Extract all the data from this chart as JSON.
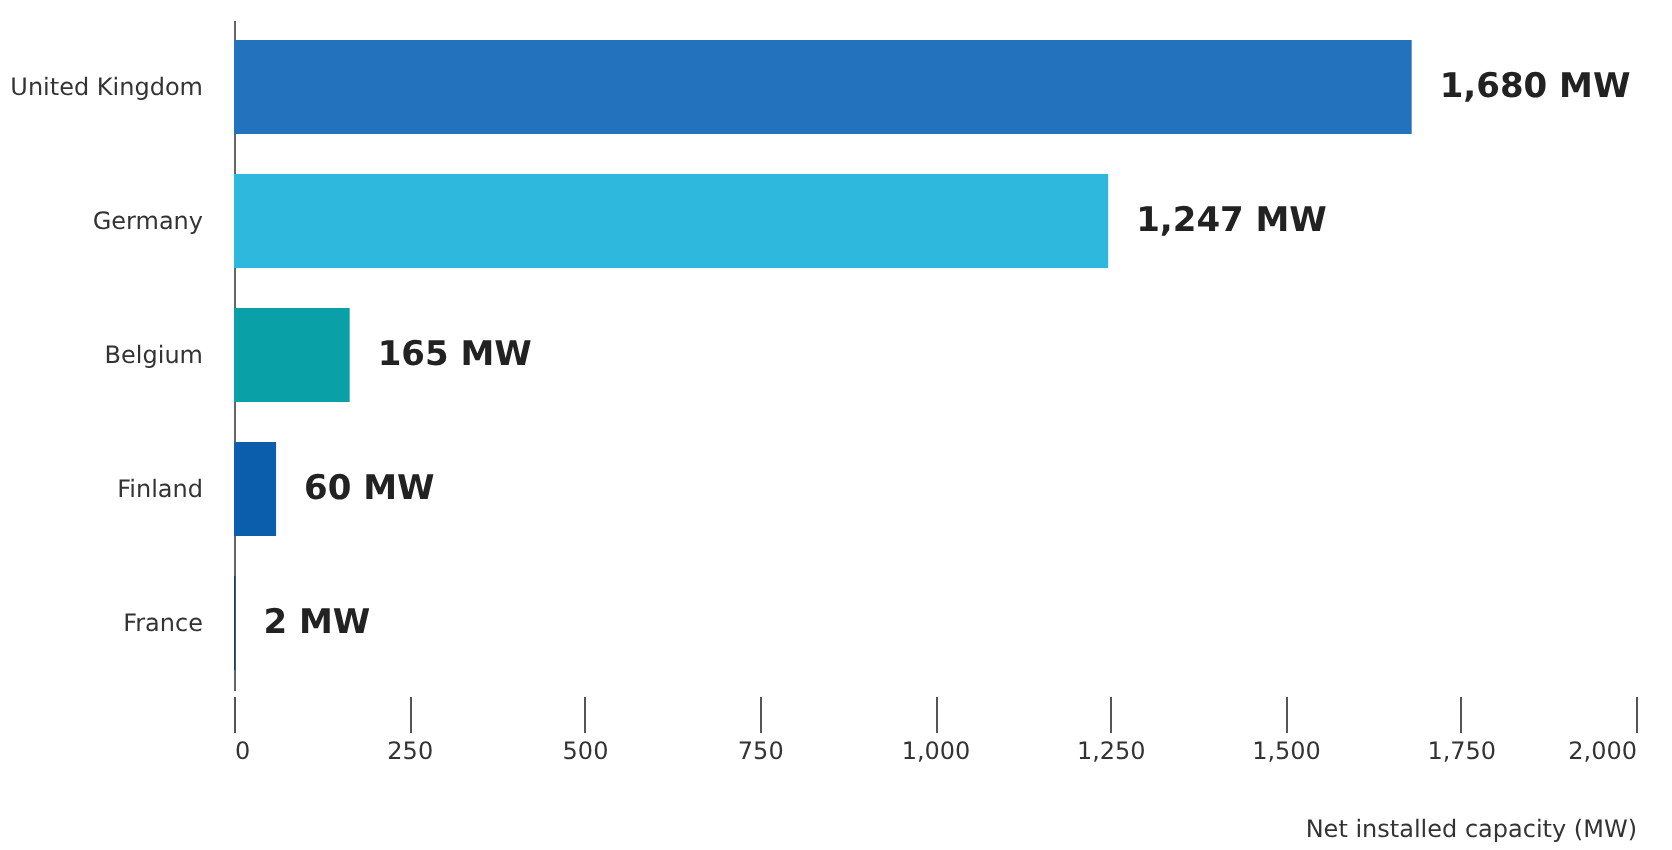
{
  "chart_data": {
    "type": "bar",
    "orientation": "horizontal",
    "xlabel": "Net installed capacity (MW)",
    "categories": [
      "United Kingdom",
      "Germany",
      "Belgium",
      "Finland",
      "France"
    ],
    "values": [
      1680,
      1247,
      165,
      60,
      2
    ],
    "colors": [
      "#2272be",
      "#2fb8de",
      "#0aa0a8",
      "#0b5eac",
      "#143f6b"
    ],
    "value_labels": [
      "1,680 MW",
      "1,247 MW",
      "165  MW",
      "60 MW",
      "2 MW"
    ],
    "xlim": [
      0,
      2000
    ],
    "xticks": [
      0,
      250,
      500,
      750,
      {
        "value": 1000,
        "label": "1,000"
      },
      {
        "value": 1250,
        "label": "1,250"
      },
      {
        "value": 1500,
        "label": "1,500"
      },
      {
        "value": 1750,
        "label": "1,750"
      },
      {
        "value": 2000,
        "label": "2,000"
      }
    ],
    "grid": false
  }
}
